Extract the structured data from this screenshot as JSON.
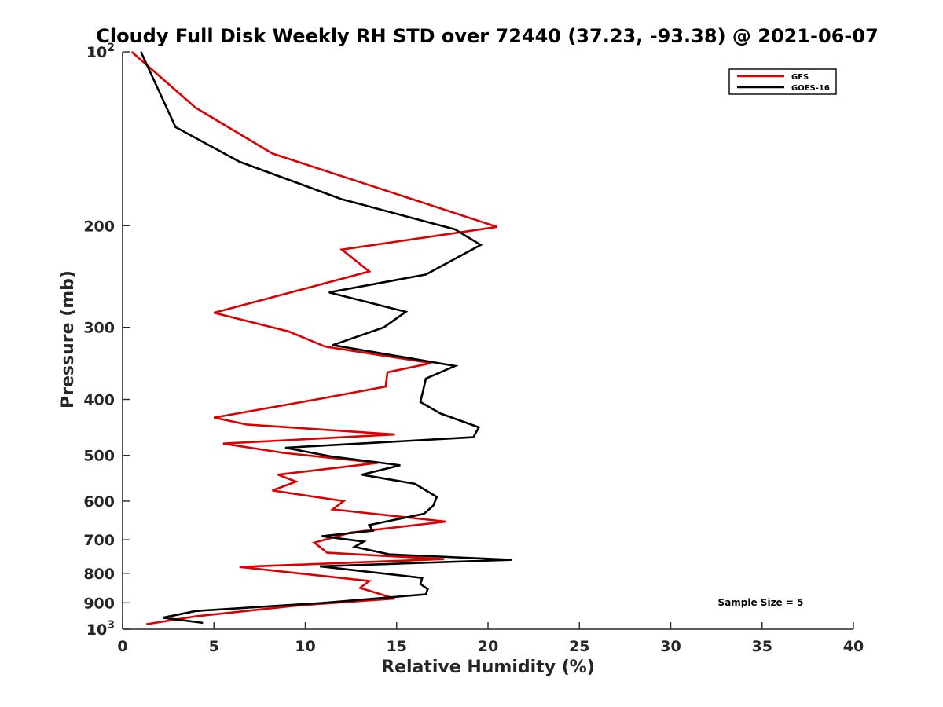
{
  "chart_data": {
    "type": "line",
    "title": "Cloudy Full Disk Weekly RH STD over 72440 (37.23, -93.38) @ 2021-06-07",
    "xlabel": "Relative Humidity (%)",
    "ylabel": "Pressure (mb)",
    "xlim": [
      0,
      40
    ],
    "ylim": [
      100,
      1000
    ],
    "yscale": "log",
    "y_reversed": true,
    "grid": false,
    "legend_position": "top-right",
    "x_ticks": [
      "0",
      "5",
      "10",
      "15",
      "20",
      "25",
      "30",
      "35",
      "40"
    ],
    "y_ticks": [
      {
        "value": 100,
        "label": "10",
        "exp": "2"
      },
      {
        "value": 200,
        "label": "200"
      },
      {
        "value": 300,
        "label": "300"
      },
      {
        "value": 400,
        "label": "400"
      },
      {
        "value": 500,
        "label": "500"
      },
      {
        "value": 600,
        "label": "600"
      },
      {
        "value": 700,
        "label": "700"
      },
      {
        "value": 800,
        "label": "800"
      },
      {
        "value": 900,
        "label": "900"
      },
      {
        "value": 1000,
        "label": "10",
        "exp": "3"
      }
    ],
    "annotation": "Sample Size = 5",
    "series": [
      {
        "name": "GFS",
        "color": "#dd0000",
        "points": [
          [
            0.5,
            100
          ],
          [
            4.0,
            125
          ],
          [
            8.2,
            150
          ],
          [
            20.5,
            201
          ],
          [
            12.0,
            220
          ],
          [
            13.5,
            240
          ],
          [
            9.8,
            258
          ],
          [
            5.0,
            283
          ],
          [
            9.1,
            305
          ],
          [
            11.1,
            324
          ],
          [
            16.9,
            346
          ],
          [
            14.5,
            359
          ],
          [
            14.4,
            380
          ],
          [
            11.0,
            398
          ],
          [
            5.0,
            430
          ],
          [
            6.8,
            442
          ],
          [
            14.9,
            460
          ],
          [
            5.5,
            477
          ],
          [
            8.8,
            495
          ],
          [
            14.0,
            515
          ],
          [
            8.5,
            540
          ],
          [
            9.5,
            555
          ],
          [
            8.2,
            575
          ],
          [
            12.1,
            600
          ],
          [
            11.5,
            620
          ],
          [
            17.7,
            651
          ],
          [
            12.5,
            680
          ],
          [
            10.5,
            708
          ],
          [
            11.2,
            737
          ],
          [
            17.6,
            756
          ],
          [
            6.4,
            780
          ],
          [
            13.5,
            825
          ],
          [
            13.0,
            848
          ],
          [
            14.9,
            885
          ],
          [
            9.5,
            910
          ],
          [
            4.0,
            950
          ],
          [
            1.3,
            980
          ]
        ]
      },
      {
        "name": "GOES-16",
        "color": "#000000",
        "points": [
          [
            1.0,
            100
          ],
          [
            2.9,
            135
          ],
          [
            6.4,
            155
          ],
          [
            12.0,
            180
          ],
          [
            18.2,
            203
          ],
          [
            19.6,
            216
          ],
          [
            16.6,
            243
          ],
          [
            11.3,
            261
          ],
          [
            15.5,
            282
          ],
          [
            14.3,
            300
          ],
          [
            11.5,
            322
          ],
          [
            18.2,
            350
          ],
          [
            16.6,
            368
          ],
          [
            16.3,
            404
          ],
          [
            17.4,
            423
          ],
          [
            19.5,
            447
          ],
          [
            19.2,
            465
          ],
          [
            8.9,
            485
          ],
          [
            11.4,
            502
          ],
          [
            15.2,
            520
          ],
          [
            13.1,
            540
          ],
          [
            16.0,
            560
          ],
          [
            17.2,
            590
          ],
          [
            17.0,
            611
          ],
          [
            16.5,
            631
          ],
          [
            13.5,
            660
          ],
          [
            13.7,
            675
          ],
          [
            10.9,
            690
          ],
          [
            13.2,
            705
          ],
          [
            12.7,
            720
          ],
          [
            14.6,
            742
          ],
          [
            21.3,
            758
          ],
          [
            10.8,
            778
          ],
          [
            16.4,
            815
          ],
          [
            16.3,
            835
          ],
          [
            16.7,
            852
          ],
          [
            16.6,
            870
          ],
          [
            11.0,
            900
          ],
          [
            4.0,
            930
          ],
          [
            2.2,
            955
          ],
          [
            4.4,
            975
          ]
        ]
      }
    ]
  }
}
